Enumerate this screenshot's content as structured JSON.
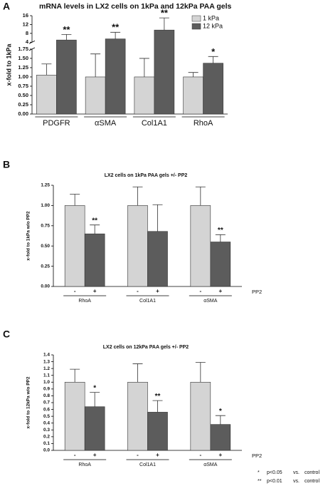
{
  "chart_data": [
    {
      "type": "bar",
      "panel": "A",
      "title": "mRNA levels in LX2 cells on 1kPa and 12kPa PAA gels",
      "y_label": "x-fold to 1kPa",
      "categories": [
        "PDGFR",
        "αSMA",
        "Col1A1",
        "RhoA"
      ],
      "series": [
        {
          "name": "1 kPa",
          "color": "#d4d4d4",
          "values": [
            1.05,
            1.0,
            1.0,
            1.0
          ],
          "errors": [
            0.3,
            0.62,
            0.5,
            0.12
          ]
        },
        {
          "name": "12 kPa",
          "color": "#5c5c5c",
          "values": [
            5.0,
            5.5,
            9.5,
            1.37
          ],
          "errors": [
            2.5,
            3.0,
            5.5,
            0.18
          ],
          "significance": [
            "**",
            "**",
            "**",
            "*"
          ]
        }
      ],
      "ylim": [
        0,
        16
      ],
      "ybreak": [
        1.75,
        4
      ],
      "yticks": [
        {
          "value": 0,
          "label": "0.00"
        },
        0.25,
        {
          "value": 0.5,
          "label": "0.50"
        },
        0.75,
        {
          "value": 1,
          "label": "1.00"
        },
        1.25,
        {
          "value": 1.5,
          "label": "1.50"
        },
        1.75,
        4,
        8,
        12,
        16
      ],
      "legend": "top-right"
    },
    {
      "type": "bar",
      "panel": "B",
      "title": "LX2 cells on 1kPa PAA gels +/- PP2",
      "y_label": "x-fold to 1kPa w/o PP2",
      "x_label": "PP2",
      "categories": [
        "RhoA",
        "Col1A1",
        "αSMA"
      ],
      "series": [
        {
          "name": "-",
          "color": "#d4d4d4",
          "values": [
            1.0,
            1.0,
            1.0
          ],
          "errors": [
            0.14,
            0.23,
            0.23
          ]
        },
        {
          "name": "+",
          "color": "#5c5c5c",
          "values": [
            0.65,
            0.68,
            0.55
          ],
          "errors": [
            0.11,
            0.33,
            0.09
          ],
          "significance": [
            "**",
            null,
            "**"
          ]
        }
      ],
      "ylim": [
        0,
        1.25
      ],
      "yticks": [
        {
          "value": 0,
          "label": "0.00"
        },
        0.25,
        {
          "value": 0.5,
          "label": "0.50"
        },
        0.75,
        {
          "value": 1,
          "label": "1.00"
        },
        1.25
      ]
    },
    {
      "type": "bar",
      "panel": "C",
      "title": "LX2 cells on 12kPa PAA gels +/- PP2",
      "y_label": "x-fold to 12kPa w/o PP2",
      "x_label": "PP2",
      "categories": [
        "RhoA",
        "Col1A1",
        "αSMA"
      ],
      "series": [
        {
          "name": "-",
          "color": "#d4d4d4",
          "values": [
            1.0,
            1.0,
            1.0
          ],
          "errors": [
            0.19,
            0.27,
            0.29
          ]
        },
        {
          "name": "+",
          "color": "#5c5c5c",
          "values": [
            0.64,
            0.56,
            0.38
          ],
          "errors": [
            0.21,
            0.17,
            0.13
          ],
          "significance": [
            "*",
            "**",
            "*"
          ]
        }
      ],
      "ylim": [
        0,
        1.4
      ],
      "yticks": [
        {
          "value": 0,
          "label": "0.0"
        },
        0.1,
        0.2,
        0.3,
        0.4,
        0.5,
        0.6,
        0.7,
        0.8,
        0.9,
        {
          "value": 1,
          "label": "1.0"
        },
        1.1,
        1.2,
        1.3,
        1.4
      ]
    }
  ],
  "footnotes": [
    [
      "*",
      "p<0.05",
      "vs.",
      "control"
    ],
    [
      "**",
      "p<0.01",
      "vs.",
      "control"
    ]
  ]
}
